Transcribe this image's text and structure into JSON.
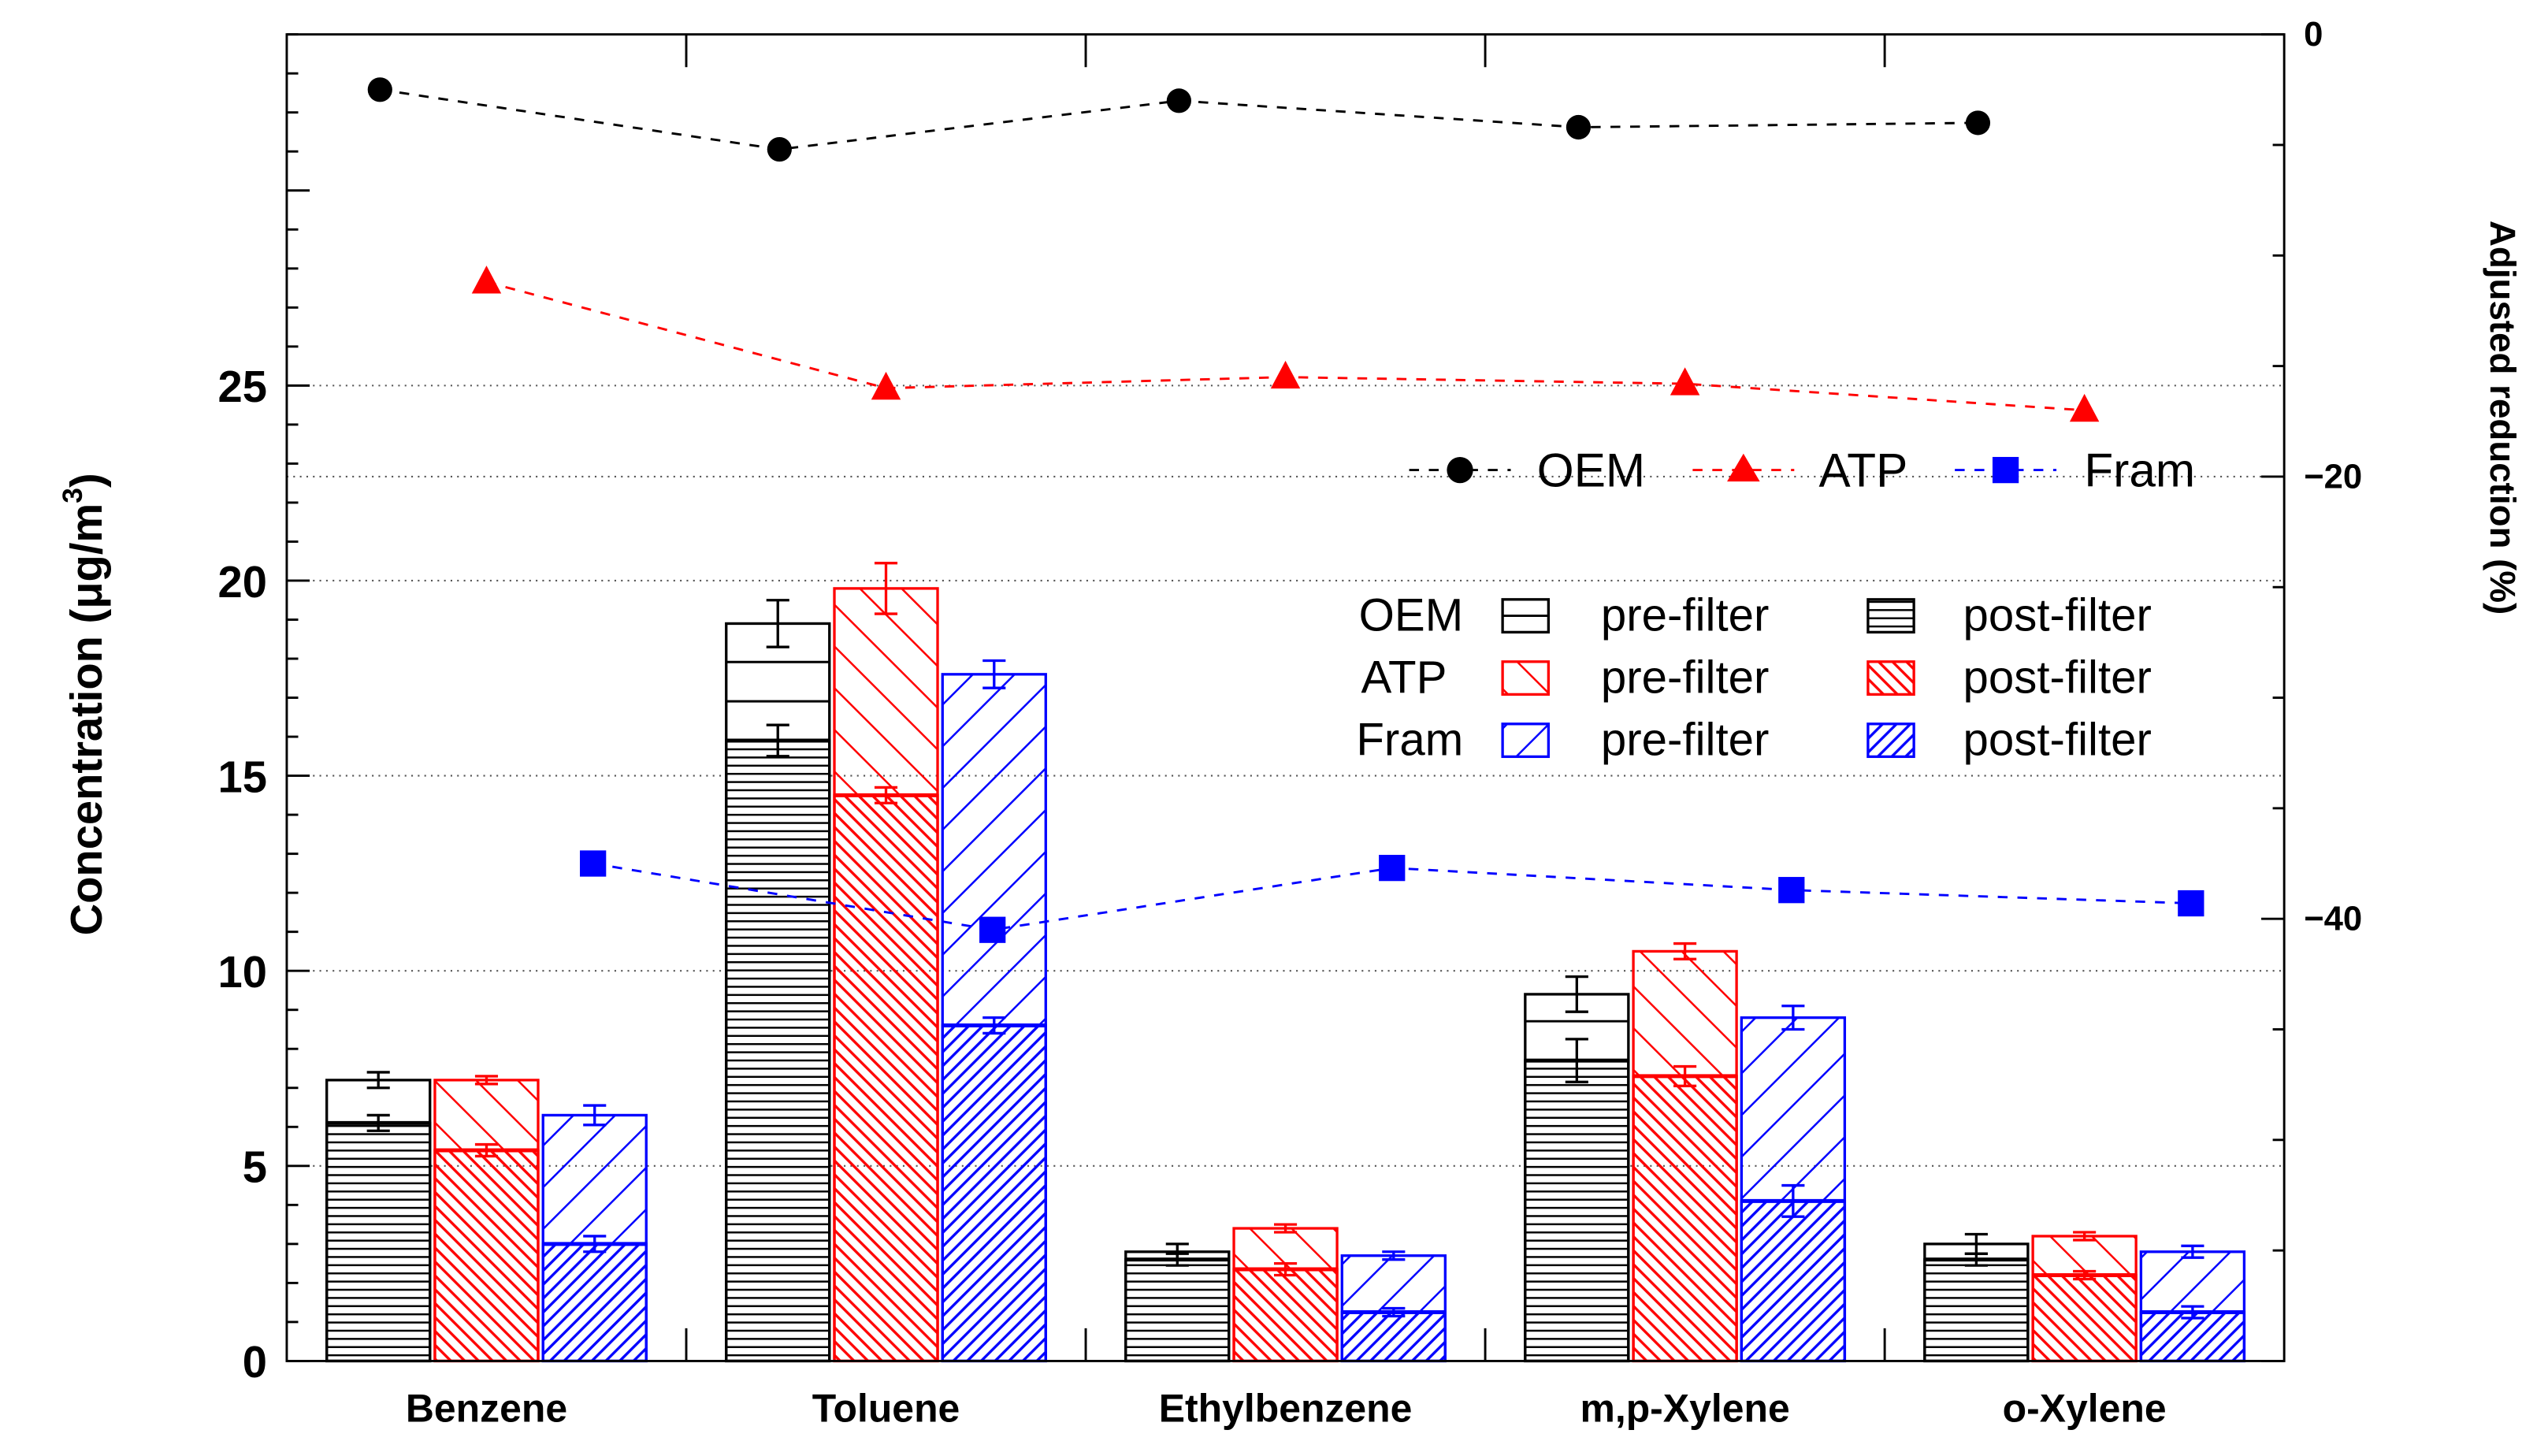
{
  "chart_data": {
    "type": "bar",
    "stacked": true,
    "categories": [
      "Benzene",
      "Toluene",
      "Ethylbenzene",
      "m,p-Xylene",
      "o-Xylene"
    ],
    "ylabel": "Concentration (μg/m³)",
    "ylabel_main": "Concentration (μg/m",
    "ylabel_sup": "3",
    "ylabel_tail": ")",
    "ylim": [
      0,
      34
    ],
    "yticks": [
      0,
      5,
      10,
      15,
      20,
      25
    ],
    "y2label": "Adjusted reduction (%)",
    "y2lim": [
      -60,
      0
    ],
    "y2ticks": [
      0,
      -20,
      -40
    ],
    "y2tick_labels": [
      "0",
      "−20",
      "−40"
    ],
    "series": [
      {
        "name": "OEM",
        "color": "#000000",
        "pattern": "horizontal",
        "post": [
          6.1,
          15.9,
          2.6,
          7.7,
          2.6
        ],
        "post_err": [
          0.2,
          0.4,
          0.15,
          0.55,
          0.15
        ],
        "pre": [
          7.2,
          18.9,
          2.8,
          9.4,
          3.0
        ],
        "pre_err": [
          0.2,
          0.6,
          0.2,
          0.45,
          0.25
        ]
      },
      {
        "name": "ATP",
        "color": "#ff0000",
        "pattern": "backslash",
        "post": [
          5.4,
          14.5,
          2.35,
          7.3,
          2.2
        ],
        "post_err": [
          0.15,
          0.2,
          0.15,
          0.25,
          0.1
        ],
        "pre": [
          7.2,
          19.8,
          3.4,
          10.5,
          3.2
        ],
        "pre_err": [
          0.1,
          0.65,
          0.1,
          0.2,
          0.1
        ]
      },
      {
        "name": "Fram",
        "color": "#0000ff",
        "pattern": "slash",
        "post": [
          3.0,
          8.6,
          1.25,
          4.1,
          1.25
        ],
        "post_err": [
          0.2,
          0.2,
          0.1,
          0.4,
          0.15
        ],
        "pre": [
          6.3,
          17.6,
          2.7,
          8.8,
          2.8
        ],
        "pre_err": [
          0.25,
          0.35,
          0.1,
          0.3,
          0.15
        ]
      }
    ],
    "reduction_series": [
      {
        "name": "OEM",
        "marker": "circle",
        "color": "#000000",
        "values": [
          -2.5,
          -5.2,
          -3.0,
          -4.2,
          -4.0
        ]
      },
      {
        "name": "ATP",
        "marker": "triangle",
        "color": "#ff0000",
        "values": [
          -11.2,
          -16.0,
          -15.5,
          -15.8,
          -17.0
        ]
      },
      {
        "name": "Fram",
        "marker": "square",
        "color": "#0000ff",
        "values": [
          -37.5,
          -40.5,
          -37.7,
          -38.7,
          -39.3
        ]
      }
    ],
    "legend_top": {
      "items": [
        "OEM",
        "ATP",
        "Fram"
      ]
    },
    "legend_bars": {
      "pre_label": "pre-filter",
      "post_label": "post-filter",
      "rows": [
        "OEM",
        "ATP",
        "Fram"
      ]
    }
  }
}
